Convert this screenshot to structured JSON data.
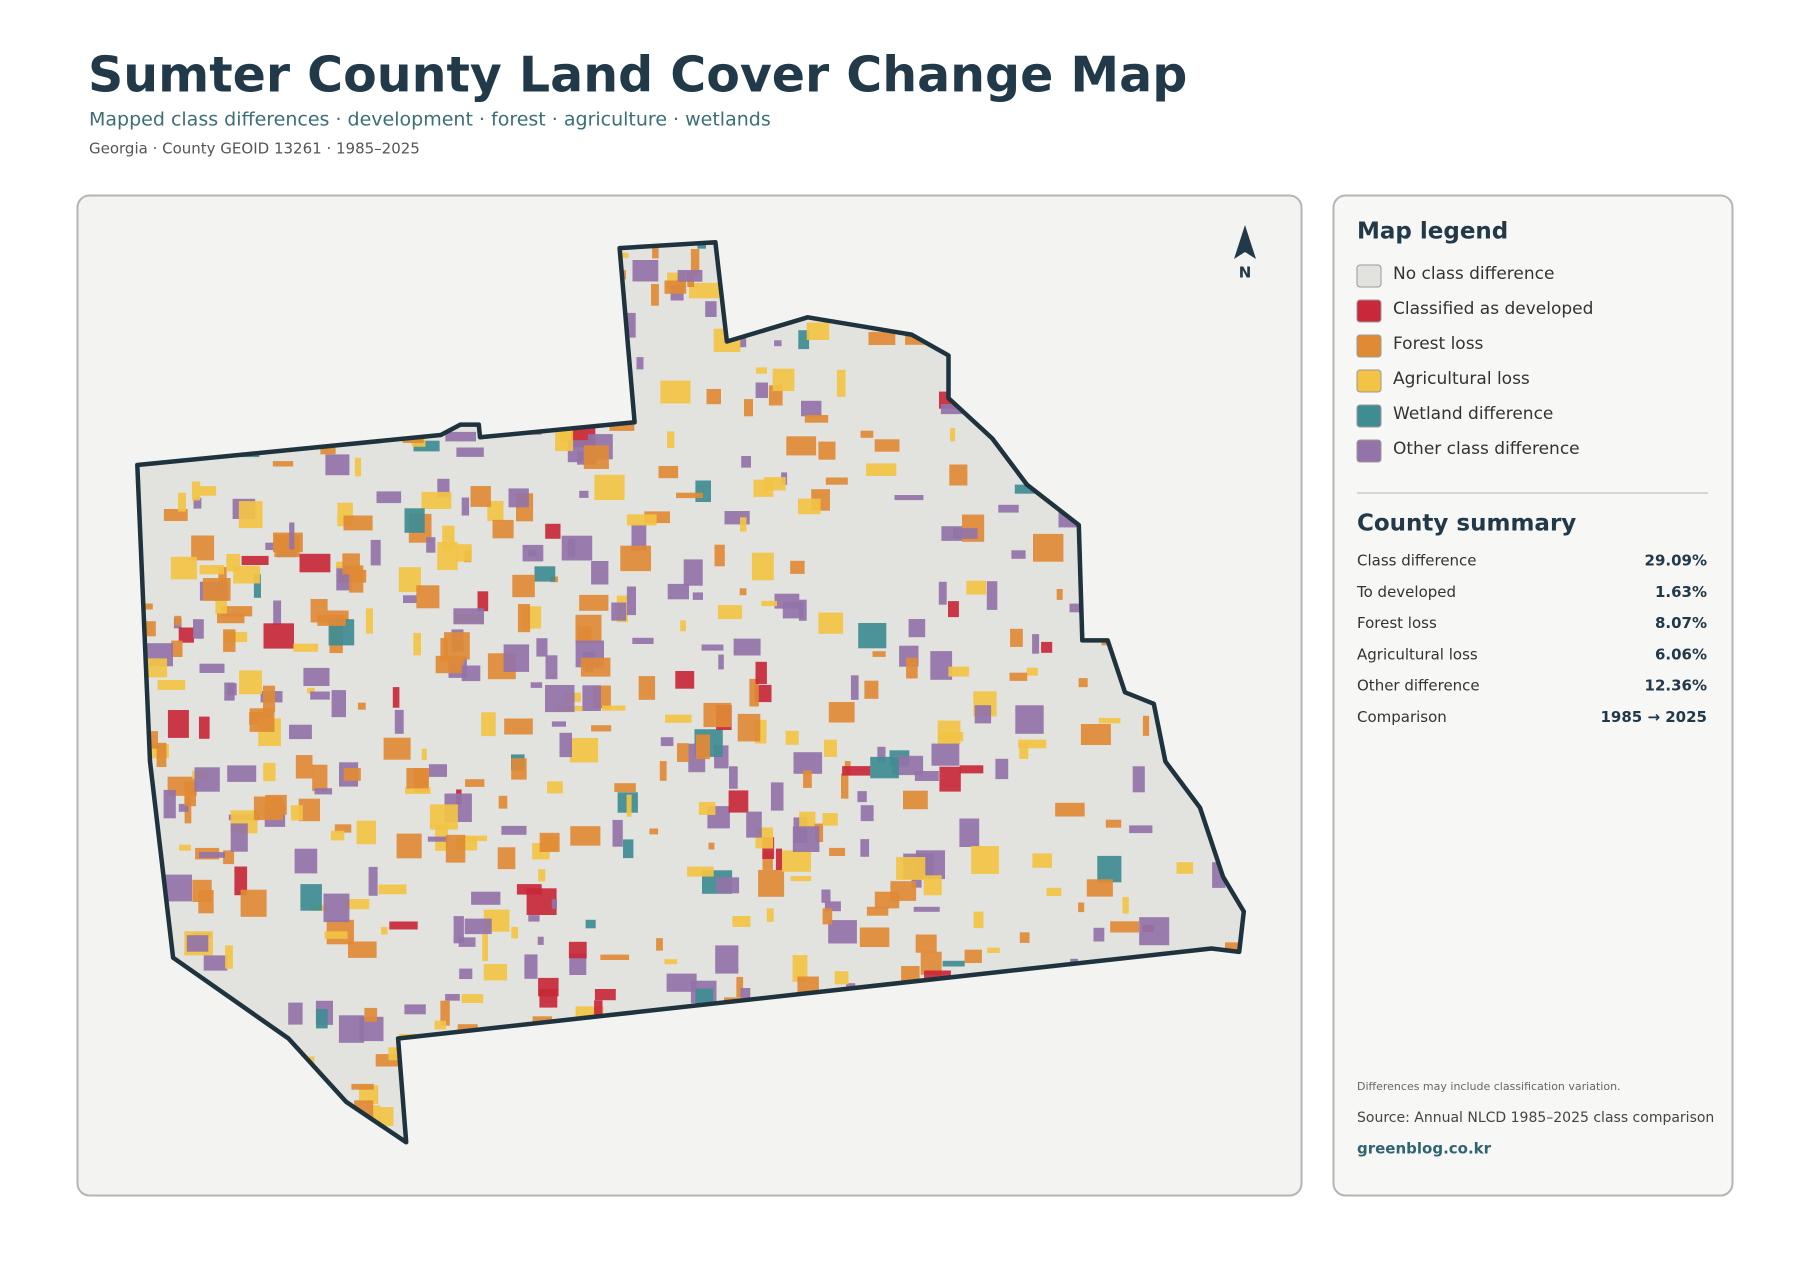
{
  "header": {
    "title": "Sumter County Land Cover Change Map",
    "subtitle": "Mapped class differences · development · forest · agriculture · wetlands",
    "meta": "Georgia · County GEOID 13261 · 1985–2025"
  },
  "map": {
    "north_label": "N"
  },
  "legend": {
    "title": "Map legend",
    "items": [
      {
        "label": "No class difference",
        "color": "#e2e2de"
      },
      {
        "label": "Classified as developed",
        "color": "#c8283a"
      },
      {
        "label": "Forest loss",
        "color": "#e08a35"
      },
      {
        "label": "Agricultural loss",
        "color": "#f2c344"
      },
      {
        "label": "Wetland difference",
        "color": "#3f8c93"
      },
      {
        "label": "Other class difference",
        "color": "#9373a8"
      }
    ]
  },
  "summary": {
    "title": "County summary",
    "rows": [
      [
        "Class difference",
        "29.09%"
      ],
      [
        "To developed",
        "1.63%"
      ],
      [
        "Forest loss",
        "8.07%"
      ],
      [
        "Agricultural loss",
        "6.06%"
      ],
      [
        "Other difference",
        "12.36%"
      ],
      [
        "Comparison",
        "1985 → 2025"
      ]
    ]
  },
  "footer": {
    "note": "Differences may include classification variation.",
    "source": "Source: Annual NLCD 1985–2025 class comparison",
    "credit": "greenblog.co.kr"
  }
}
